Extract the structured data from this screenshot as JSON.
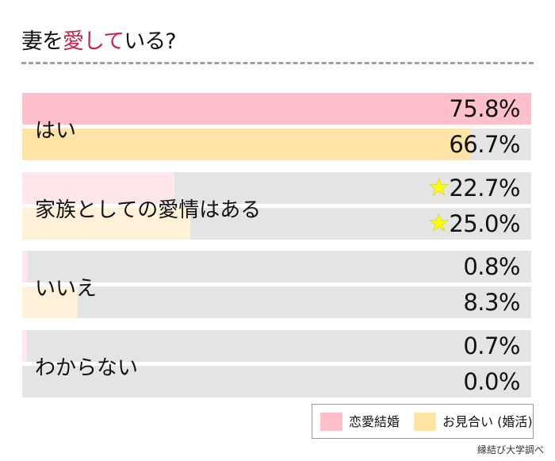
{
  "title": {
    "pre": "妻を",
    "highlight": "愛して",
    "post": "いる?"
  },
  "source": "縁結び大学調べ",
  "colors": {
    "series1": "#ffc0cb",
    "series1_faded": "#ffe6ea",
    "series2": "#fde3a4",
    "series2_faded": "#fff1d8",
    "track": "#e4e4e4",
    "highlight": "#c8234a",
    "star": "#ffff00"
  },
  "chart_data": {
    "type": "bar",
    "orientation": "horizontal",
    "categories": [
      "はい",
      "家族としての愛情はある",
      "いいえ",
      "わからない"
    ],
    "series": [
      {
        "name": "恋愛結婚",
        "values": [
          75.8,
          22.7,
          0.8,
          0.7
        ]
      },
      {
        "name": "お見合い（婚活)",
        "values": [
          66.7,
          25.0,
          8.3,
          0.0
        ]
      }
    ],
    "labels": [
      [
        "75.8%",
        "66.7%"
      ],
      [
        "22.7%",
        "25.0%"
      ],
      [
        "0.8%",
        "8.3%"
      ],
      [
        "0.7%",
        "0.0%"
      ]
    ],
    "highlighted_category": "はい",
    "star_category": "家族としての愛情はある",
    "legend": {
      "placement": "bottom-right",
      "items": [
        "恋愛結婚",
        "お見合い (婚活)"
      ]
    },
    "unit": "%"
  }
}
